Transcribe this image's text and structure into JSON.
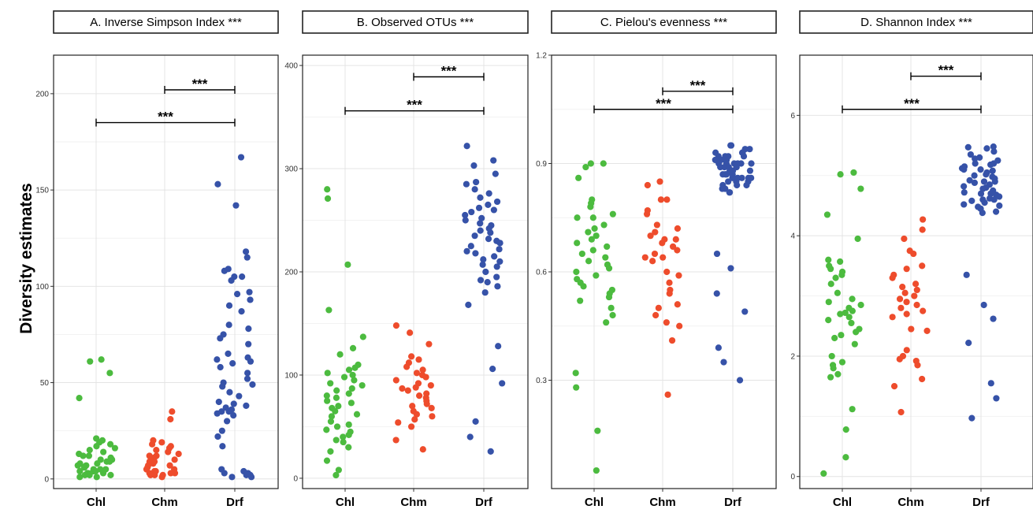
{
  "figure": {
    "ylabel": "Diversity estimates"
  },
  "colors": {
    "Chl": "#4cbb3f",
    "Chm": "#ee4c2c",
    "Drf": "#3652a8"
  },
  "chart_data": [
    {
      "type": "scatter",
      "title": "A. Inverse Simpson Index ***",
      "categories": [
        "Chl",
        "Chm",
        "Drf"
      ],
      "yticks": [
        0,
        50,
        100,
        150,
        200
      ],
      "ylim": [
        -5,
        220
      ],
      "grid": true,
      "significance": [
        {
          "from": "Chm",
          "to": "Drf",
          "label": "***",
          "y": 202
        },
        {
          "from": "Chl",
          "to": "Drf",
          "label": "***",
          "y": 185
        }
      ],
      "series": [
        {
          "name": "Chl",
          "values": [
            62,
            61,
            55,
            42,
            17,
            16,
            15,
            14,
            13,
            12,
            12,
            11,
            10,
            10,
            9,
            9,
            8,
            8,
            7,
            7,
            6,
            6,
            5,
            5,
            5,
            4,
            4,
            4,
            3,
            3,
            3,
            2,
            2,
            2,
            1,
            1,
            18,
            19,
            20,
            21
          ]
        },
        {
          "name": "Chm",
          "values": [
            31,
            35,
            20,
            19,
            18,
            17,
            15,
            14,
            13,
            12,
            12,
            11,
            10,
            10,
            9,
            9,
            8,
            7,
            7,
            6,
            5,
            5,
            4,
            4,
            3,
            3,
            3,
            2,
            2,
            2,
            1,
            16
          ]
        },
        {
          "name": "Drf",
          "values": [
            167,
            153,
            142,
            118,
            115,
            109,
            108,
            105,
            105,
            103,
            97,
            96,
            93,
            90,
            87,
            80,
            78,
            75,
            73,
            70,
            65,
            63,
            62,
            61,
            60,
            58,
            55,
            52,
            50,
            49,
            48,
            45,
            43,
            40,
            39,
            38,
            37,
            36,
            35,
            35,
            34,
            33,
            30,
            25,
            22,
            17,
            5,
            4,
            3,
            2,
            2,
            1,
            1,
            3
          ]
        }
      ]
    },
    {
      "type": "scatter",
      "title": "B. Observed OTUs ***",
      "categories": [
        "Chl",
        "Chm",
        "Drf"
      ],
      "yticks": [
        0,
        100,
        200,
        300,
        400
      ],
      "ylim": [
        -10,
        410
      ],
      "grid": true,
      "significance": [
        {
          "from": "Chm",
          "to": "Drf",
          "label": "***",
          "y": 389
        },
        {
          "from": "Chl",
          "to": "Drf",
          "label": "***",
          "y": 356
        }
      ],
      "series": [
        {
          "name": "Chl",
          "values": [
            280,
            271,
            207,
            163,
            137,
            126,
            120,
            110,
            107,
            105,
            102,
            100,
            98,
            95,
            92,
            90,
            87,
            85,
            82,
            80,
            78,
            75,
            73,
            70,
            68,
            65,
            62,
            60,
            55,
            52,
            50,
            47,
            45,
            42,
            40,
            37,
            35,
            30,
            26,
            17,
            8,
            3
          ]
        },
        {
          "name": "Chm",
          "values": [
            148,
            141,
            130,
            118,
            115,
            112,
            108,
            105,
            102,
            100,
            98,
            95,
            92,
            90,
            88,
            87,
            85,
            82,
            80,
            78,
            75,
            72,
            70,
            68,
            65,
            62,
            60,
            57,
            54,
            50,
            37,
            28
          ]
        },
        {
          "name": "Drf",
          "values": [
            322,
            308,
            303,
            295,
            287,
            285,
            280,
            276,
            272,
            268,
            265,
            262,
            260,
            258,
            255,
            252,
            250,
            247,
            245,
            242,
            240,
            238,
            235,
            232,
            230,
            228,
            225,
            222,
            220,
            218,
            215,
            212,
            210,
            207,
            205,
            200,
            195,
            192,
            190,
            186,
            180,
            168,
            128,
            106,
            92,
            55,
            40,
            26
          ]
        }
      ]
    },
    {
      "type": "scatter",
      "title": "C. Pielou's evenness ***",
      "categories": [
        "Chl",
        "Chm",
        "Drf"
      ],
      "yticks": [
        0.3,
        0.6,
        0.9,
        1.2
      ],
      "ylim": [
        0.0,
        1.2
      ],
      "grid": true,
      "significance": [
        {
          "from": "Chm",
          "to": "Drf",
          "label": "***",
          "y": 1.1
        },
        {
          "from": "Chl",
          "to": "Drf",
          "label": "***",
          "y": 1.05
        }
      ],
      "series": [
        {
          "name": "Chl",
          "values": [
            0.9,
            0.9,
            0.89,
            0.86,
            0.8,
            0.79,
            0.78,
            0.76,
            0.75,
            0.75,
            0.73,
            0.72,
            0.71,
            0.7,
            0.69,
            0.68,
            0.67,
            0.66,
            0.65,
            0.64,
            0.63,
            0.62,
            0.61,
            0.6,
            0.59,
            0.58,
            0.57,
            0.56,
            0.55,
            0.54,
            0.53,
            0.52,
            0.5,
            0.48,
            0.46,
            0.32,
            0.28,
            0.16,
            0.05
          ]
        },
        {
          "name": "Chm",
          "values": [
            0.85,
            0.84,
            0.8,
            0.8,
            0.77,
            0.76,
            0.73,
            0.72,
            0.71,
            0.7,
            0.69,
            0.69,
            0.68,
            0.67,
            0.66,
            0.65,
            0.64,
            0.64,
            0.63,
            0.6,
            0.59,
            0.57,
            0.55,
            0.54,
            0.51,
            0.5,
            0.48,
            0.46,
            0.45,
            0.41,
            0.26
          ]
        },
        {
          "name": "Drf",
          "values": [
            0.95,
            0.95,
            0.94,
            0.94,
            0.93,
            0.93,
            0.92,
            0.92,
            0.92,
            0.91,
            0.91,
            0.91,
            0.9,
            0.9,
            0.9,
            0.9,
            0.89,
            0.89,
            0.89,
            0.88,
            0.88,
            0.88,
            0.87,
            0.87,
            0.87,
            0.86,
            0.86,
            0.86,
            0.85,
            0.85,
            0.85,
            0.84,
            0.84,
            0.84,
            0.83,
            0.83,
            0.82,
            0.82,
            0.93,
            0.92,
            0.91,
            0.9,
            0.88,
            0.87,
            0.86,
            0.89,
            0.9,
            0.86,
            0.88,
            0.65,
            0.61,
            0.54,
            0.49,
            0.39,
            0.35,
            0.3
          ]
        }
      ]
    },
    {
      "type": "scatter",
      "title": "D. Shannon Index ***",
      "categories": [
        "Chl",
        "Chm",
        "Drf"
      ],
      "yticks": [
        0,
        2,
        4,
        6
      ],
      "ylim": [
        -0.2,
        7.0
      ],
      "grid": true,
      "significance": [
        {
          "from": "Chm",
          "to": "Drf",
          "label": "***",
          "y": 6.65
        },
        {
          "from": "Chl",
          "to": "Drf",
          "label": "***",
          "y": 6.1
        }
      ],
      "series": [
        {
          "name": "Chl",
          "values": [
            5.05,
            5.02,
            4.78,
            4.35,
            3.95,
            3.6,
            3.57,
            3.5,
            3.45,
            3.4,
            3.35,
            3.3,
            3.2,
            3.05,
            2.95,
            2.9,
            2.85,
            2.8,
            2.75,
            2.72,
            2.7,
            2.65,
            2.6,
            2.55,
            2.45,
            2.4,
            2.35,
            2.3,
            2.2,
            2.0,
            1.9,
            1.85,
            1.8,
            1.7,
            1.65,
            1.12,
            0.78,
            0.32,
            0.05
          ]
        },
        {
          "name": "Chm",
          "values": [
            4.27,
            4.1,
            3.95,
            3.75,
            3.7,
            3.5,
            3.45,
            3.35,
            3.3,
            3.2,
            3.15,
            3.1,
            3.05,
            3.0,
            2.95,
            2.9,
            2.85,
            2.8,
            2.75,
            2.7,
            2.65,
            2.45,
            2.42,
            2.1,
            2.0,
            1.95,
            1.92,
            1.85,
            1.62,
            1.5,
            1.07
          ]
        },
        {
          "name": "Drf",
          "values": [
            5.48,
            5.47,
            5.45,
            5.4,
            5.35,
            5.3,
            5.28,
            5.25,
            5.2,
            5.18,
            5.15,
            5.12,
            5.1,
            5.08,
            5.05,
            5.02,
            5.0,
            4.98,
            4.95,
            4.92,
            4.9,
            4.88,
            4.85,
            4.82,
            4.8,
            4.78,
            4.75,
            4.72,
            4.7,
            4.68,
            4.65,
            4.62,
            4.6,
            4.58,
            4.55,
            4.52,
            4.5,
            4.48,
            4.45,
            4.4,
            4.38,
            5.2,
            5.1,
            4.9,
            4.6,
            4.7,
            3.35,
            2.85,
            2.62,
            2.22,
            1.55,
            1.3,
            0.97
          ]
        }
      ]
    }
  ]
}
